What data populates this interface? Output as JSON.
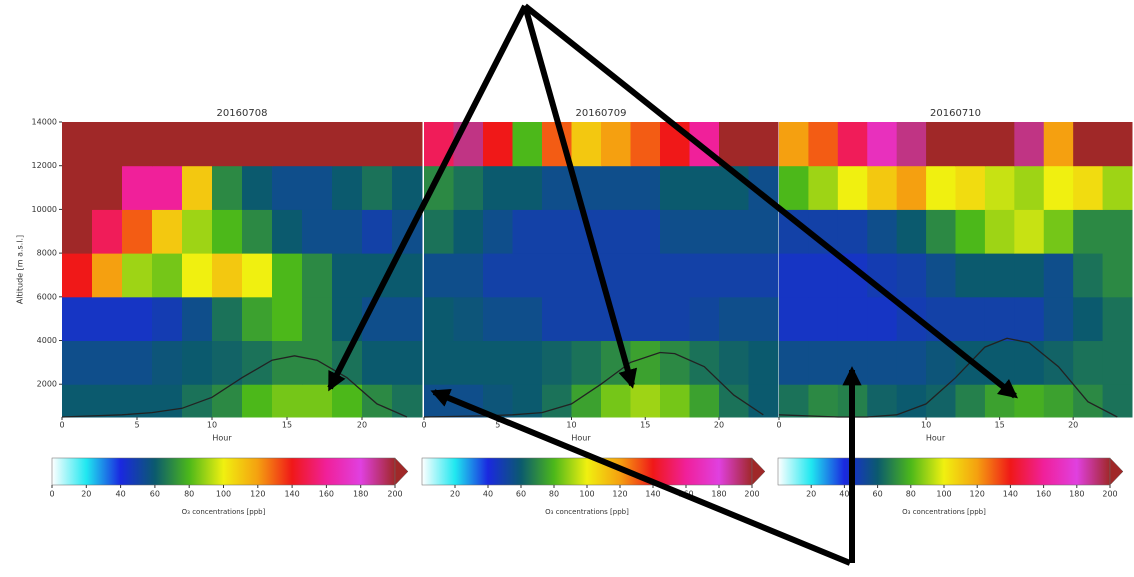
{
  "chart_data": [
    {
      "type": "heatmap",
      "title": "20160708",
      "x_label": "Hour",
      "y_label": "Altitude [m a.s.l.]",
      "xlim": [
        0,
        24
      ],
      "xticks": [
        0,
        5,
        10,
        15,
        20
      ],
      "ylim": [
        500,
        14000
      ],
      "yticks": [
        2000,
        4000,
        6000,
        8000,
        10000,
        12000,
        14000
      ],
      "x_bins": [
        0,
        2,
        4,
        6,
        8,
        10,
        12,
        14,
        16,
        18,
        20,
        22,
        24
      ],
      "y_bins": [
        500,
        2000,
        4000,
        6000,
        8000,
        10000,
        12000,
        14000
      ],
      "z": [
        [
          60,
          60,
          60,
          60,
          65,
          70,
          80,
          85,
          85,
          80,
          70,
          65
        ],
        [
          55,
          55,
          55,
          58,
          60,
          62,
          65,
          70,
          70,
          65,
          60,
          60
        ],
        [
          45,
          45,
          45,
          48,
          55,
          65,
          75,
          80,
          70,
          60,
          55,
          55
        ],
        [
          140,
          120,
          90,
          85,
          100,
          110,
          100,
          80,
          70,
          60,
          60,
          60
        ],
        [
          200,
          150,
          130,
          110,
          90,
          80,
          70,
          60,
          55,
          55,
          50,
          55
        ],
        [
          200,
          200,
          160,
          160,
          110,
          70,
          60,
          55,
          55,
          60,
          65,
          60
        ],
        [
          200,
          200,
          200,
          200,
          200,
          200,
          200,
          200,
          200,
          200,
          200,
          200
        ]
      ],
      "line": {
        "x": [
          0,
          4,
          6,
          8,
          10,
          12,
          14,
          15.5,
          17,
          19,
          21,
          23
        ],
        "y": [
          500,
          600,
          700,
          900,
          1400,
          2300,
          3100,
          3300,
          3100,
          2300,
          1100,
          500
        ],
        "color": "#222222"
      },
      "colormap": [
        "#ffffff",
        "#20e8f0",
        "#1a28e0",
        "#0b5a6e",
        "#4cb81a",
        "#f0f010",
        "#f5a010",
        "#f01818",
        "#f0209a",
        "#e040e0",
        "#a02828"
      ],
      "colorbar": {
        "label": "O₃ concentrations [ppb]",
        "lim": [
          0,
          200
        ],
        "ticks": [
          0,
          20,
          40,
          60,
          80,
          100,
          120,
          140,
          160,
          180,
          200
        ]
      }
    },
    {
      "type": "heatmap",
      "title": "20160709",
      "x_label": "Hour",
      "xlim": [
        0,
        24
      ],
      "xticks": [
        0,
        5,
        10,
        15,
        20
      ],
      "ylim": [
        500,
        14000
      ],
      "x_bins": [
        0,
        2,
        4,
        6,
        8,
        10,
        12,
        14,
        16,
        18,
        20,
        22,
        24
      ],
      "y_bins": [
        500,
        2000,
        4000,
        6000,
        8000,
        10000,
        12000,
        14000
      ],
      "z": [
        [
          55,
          55,
          58,
          60,
          65,
          75,
          85,
          90,
          85,
          75,
          65,
          60
        ],
        [
          60,
          60,
          60,
          60,
          62,
          65,
          70,
          75,
          70,
          65,
          62,
          60
        ],
        [
          60,
          58,
          55,
          55,
          50,
          50,
          50,
          50,
          50,
          52,
          55,
          55
        ],
        [
          55,
          55,
          50,
          50,
          50,
          50,
          50,
          50,
          50,
          50,
          50,
          50
        ],
        [
          65,
          60,
          55,
          50,
          50,
          50,
          50,
          50,
          55,
          55,
          55,
          55
        ],
        [
          70,
          65,
          60,
          60,
          55,
          55,
          55,
          55,
          60,
          60,
          60,
          55
        ],
        [
          150,
          190,
          140,
          80,
          130,
          110,
          120,
          130,
          140,
          160,
          200,
          200
        ]
      ],
      "line": {
        "x": [
          0,
          4,
          6,
          8,
          10,
          12,
          14,
          16,
          17,
          19,
          21,
          23
        ],
        "y": [
          500,
          550,
          600,
          700,
          1100,
          2000,
          3000,
          3450,
          3400,
          2800,
          1500,
          600
        ],
        "color": "#222222"
      },
      "colormap": [
        "#ffffff",
        "#20e8f0",
        "#1a28e0",
        "#0b5a6e",
        "#4cb81a",
        "#f0f010",
        "#f5a010",
        "#f01818",
        "#f0209a",
        "#e040e0",
        "#a02828"
      ],
      "colorbar": {
        "label": "O₃ concentrations [ppb]",
        "lim": [
          0,
          200
        ],
        "ticks": [
          20,
          40,
          60,
          80,
          100,
          120,
          140,
          160,
          180,
          200
        ]
      }
    },
    {
      "type": "heatmap",
      "title": "20160710",
      "x_label": "Hour",
      "xlim": [
        0,
        24
      ],
      "xticks": [
        0,
        5,
        10,
        15,
        20
      ],
      "ylim": [
        500,
        14000
      ],
      "x_bins": [
        0,
        2,
        4,
        6,
        8,
        10,
        12,
        14,
        16,
        18,
        20,
        22,
        24
      ],
      "y_bins": [
        500,
        2000,
        4000,
        6000,
        8000,
        10000,
        12000,
        14000
      ],
      "z": [
        [
          65,
          70,
          68,
          62,
          60,
          62,
          68,
          75,
          78,
          75,
          70,
          65
        ],
        [
          55,
          55,
          55,
          55,
          55,
          58,
          60,
          60,
          60,
          62,
          65,
          65
        ],
        [
          45,
          45,
          45,
          45,
          48,
          50,
          50,
          50,
          50,
          55,
          60,
          65
        ],
        [
          45,
          45,
          45,
          48,
          50,
          55,
          60,
          60,
          60,
          55,
          65,
          70
        ],
        [
          50,
          50,
          50,
          55,
          60,
          70,
          80,
          90,
          95,
          85,
          70,
          70
        ],
        [
          80,
          90,
          100,
          110,
          120,
          100,
          105,
          95,
          90,
          100,
          105,
          90
        ],
        [
          120,
          130,
          150,
          170,
          190,
          200,
          200,
          200,
          190,
          120,
          200,
          200
        ]
      ],
      "line": {
        "x": [
          0,
          4,
          6,
          8,
          10,
          12,
          14,
          15.5,
          17,
          19,
          21,
          23
        ],
        "y": [
          600,
          500,
          500,
          600,
          1100,
          2300,
          3700,
          4100,
          3900,
          2800,
          1200,
          500
        ],
        "color": "#222222"
      },
      "colormap": [
        "#ffffff",
        "#20e8f0",
        "#1a28e0",
        "#0b5a6e",
        "#4cb81a",
        "#f0f010",
        "#f5a010",
        "#f01818",
        "#f0209a",
        "#e040e0",
        "#a02828"
      ],
      "colorbar": {
        "label": "O₃ concentrations [ppb]",
        "lim": [
          0,
          200
        ],
        "ticks": [
          20,
          40,
          60,
          80,
          100,
          120,
          140,
          160,
          180,
          200
        ]
      }
    }
  ]
}
